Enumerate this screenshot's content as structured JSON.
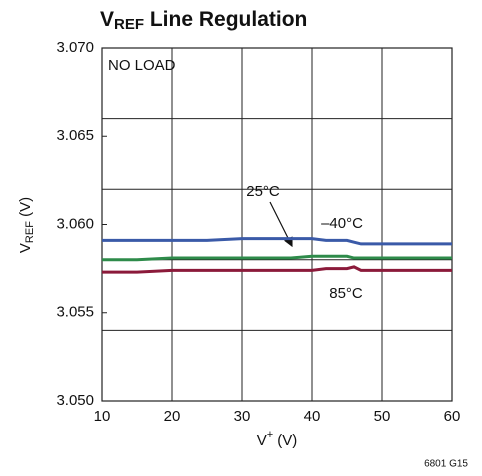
{
  "chart_data": {
    "type": "line",
    "title": {
      "main": "V",
      "sub": "REF",
      "rest": " Line Regulation"
    },
    "y_label": {
      "main": "V",
      "sub": "REF",
      "rest": " (V)"
    },
    "x_label": {
      "main": "V",
      "sup": "+",
      "rest": " (V)"
    },
    "annotations": [
      "NO LOAD",
      "25°C",
      "–40°C",
      "85°C",
      "6801 G15"
    ],
    "x": [
      10,
      15,
      20,
      25,
      30,
      35,
      37,
      40,
      42,
      44,
      45,
      46,
      47,
      50,
      55,
      60
    ],
    "series": [
      {
        "name": "–40°C",
        "color": "#3a5aa8",
        "values": [
          3.0591,
          3.0591,
          3.0591,
          3.0591,
          3.0592,
          3.0592,
          3.0592,
          3.0592,
          3.0591,
          3.0591,
          3.0591,
          3.059,
          3.0589,
          3.0589,
          3.0589,
          3.0589
        ]
      },
      {
        "name": "25°C",
        "color": "#2e8b4a",
        "values": [
          3.058,
          3.058,
          3.0581,
          3.0581,
          3.0581,
          3.0581,
          3.0581,
          3.0582,
          3.0582,
          3.0582,
          3.0582,
          3.0581,
          3.0581,
          3.0581,
          3.0581,
          3.0581
        ]
      },
      {
        "name": "85°C",
        "color": "#8b1a3a",
        "values": [
          3.0573,
          3.0573,
          3.0574,
          3.0574,
          3.0574,
          3.0574,
          3.0574,
          3.0574,
          3.0575,
          3.0575,
          3.0575,
          3.0576,
          3.0574,
          3.0574,
          3.0574,
          3.0574
        ]
      }
    ],
    "xlim": [
      10,
      60
    ],
    "xticks": [
      10,
      20,
      30,
      40,
      50,
      60
    ],
    "ylim": [
      3.05,
      3.07
    ],
    "yticks": [
      {
        "value": 3.05,
        "label": "3.050"
      },
      {
        "value": 3.055,
        "label": "3.055"
      },
      {
        "value": 3.06,
        "label": "3.060"
      },
      {
        "value": 3.065,
        "label": "3.065"
      },
      {
        "value": 3.07,
        "label": "3.070"
      }
    ],
    "ygrid": [
      3.05,
      3.054,
      3.058,
      3.062,
      3.066,
      3.07
    ],
    "grid": true
  }
}
